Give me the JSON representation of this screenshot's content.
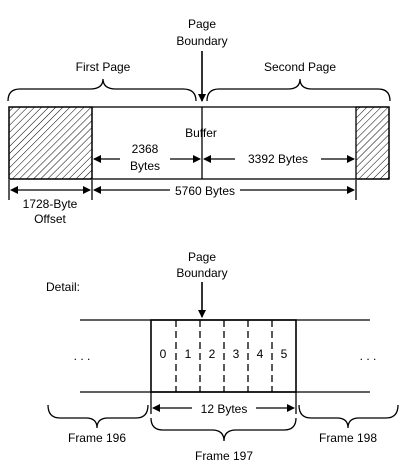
{
  "top": {
    "page_boundary": [
      "Page",
      "Boundary"
    ],
    "first_page": "First Page",
    "second_page": "Second Page",
    "buffer": "Buffer",
    "bytes_2368": [
      "2368",
      "Bytes"
    ],
    "bytes_3392": "3392 Bytes",
    "bytes_5760": "5760 Bytes",
    "offset": [
      "1728-Byte",
      "Offset"
    ]
  },
  "detail": {
    "label": "Detail:",
    "page_boundary": [
      "Page",
      "Boundary"
    ],
    "ellipsis": ". . .",
    "slots": [
      "0",
      "1",
      "2",
      "3",
      "4",
      "5"
    ],
    "bytes_12": "12 Bytes",
    "frame_196": "Frame 196",
    "frame_197": "Frame 197",
    "frame_198": "Frame 198"
  }
}
